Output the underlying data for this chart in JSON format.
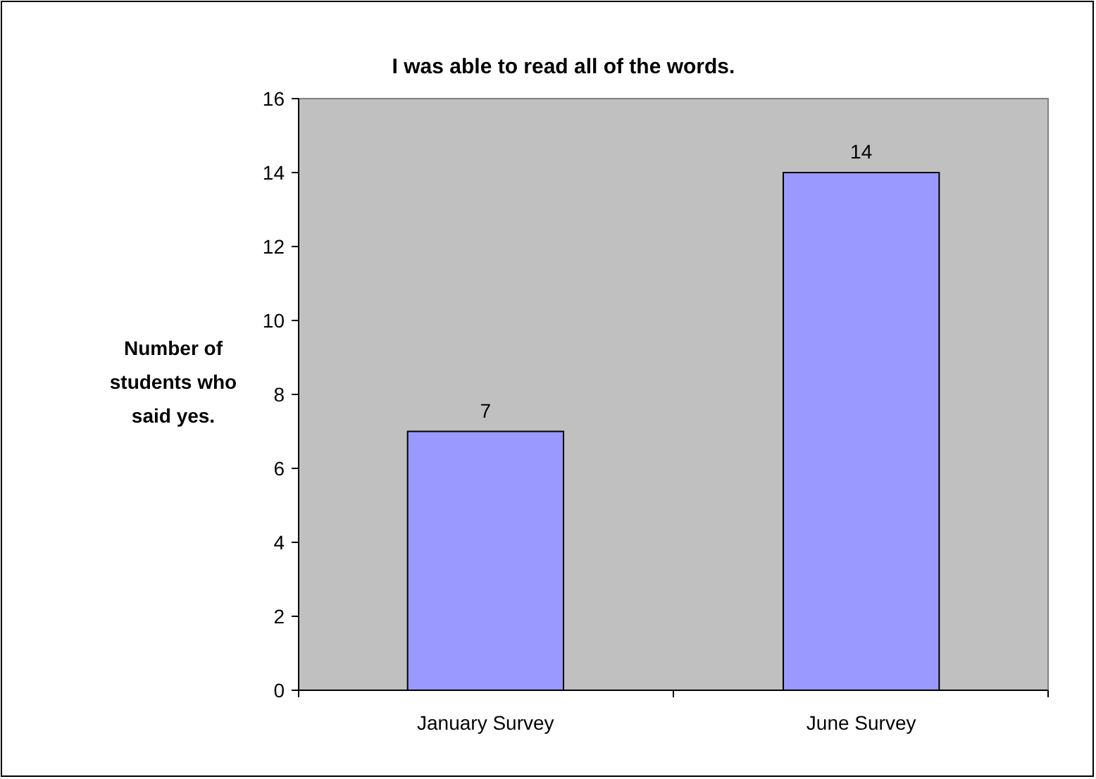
{
  "chart_data": {
    "type": "bar",
    "title": "I was able to read all of the words.",
    "ylabel": "Number of students who said yes.",
    "categories": [
      "January Survey",
      "June Survey"
    ],
    "values": [
      7,
      14
    ],
    "color": "#9999ff",
    "ylim": [
      0,
      16
    ],
    "yticks": [
      0,
      2,
      4,
      6,
      8,
      10,
      12,
      14,
      16
    ],
    "data_labels": true
  }
}
